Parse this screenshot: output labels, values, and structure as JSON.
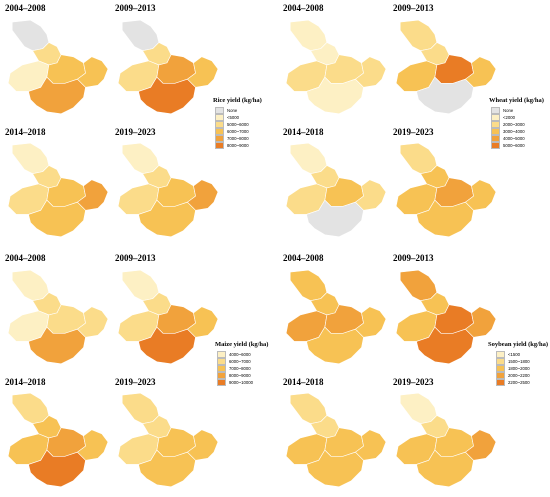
{
  "periods": [
    "2004–2008",
    "2009–2013",
    "2014–2018",
    "2019–2023"
  ],
  "crops": [
    {
      "id": "rice",
      "legend_title": "Rice yield (kg/ha)",
      "legend_items": [
        {
          "label": "None",
          "color": "#e3e3e3"
        },
        {
          "label": "<5000",
          "color": "#fdf0c4"
        },
        {
          "label": "5000~6000",
          "color": "#fbdc8a"
        },
        {
          "label": "6000~7000",
          "color": "#f7c254"
        },
        {
          "label": "7000~8000",
          "color": "#f1a23c"
        },
        {
          "label": "8000~9000",
          "color": "#e97c25"
        }
      ],
      "maps": [
        {
          "period": "2004–2008",
          "north": "#e3e3e3",
          "west": "#fdf0c4",
          "central": "#f7c254",
          "south": "#f1a23c",
          "east": "#f7c254",
          "panhandle": "#fbdc8a"
        },
        {
          "period": "2009–2013",
          "north": "#e3e3e3",
          "west": "#fbdc8a",
          "central": "#f1a23c",
          "south": "#e97c25",
          "east": "#f7c254",
          "panhandle": "#fbdc8a"
        },
        {
          "period": "2014–2018",
          "north": "#fdf0c4",
          "west": "#fbdc8a",
          "central": "#f7c254",
          "south": "#f7c254",
          "east": "#f1a23c",
          "panhandle": "#fbdc8a"
        },
        {
          "period": "2019–2023",
          "north": "#fdf0c4",
          "west": "#fbdc8a",
          "central": "#f7c254",
          "south": "#f7c254",
          "east": "#f1a23c",
          "panhandle": "#fbdc8a"
        }
      ]
    },
    {
      "id": "wheat",
      "legend_title": "Wheat yield (kg/ha)",
      "legend_items": [
        {
          "label": "None",
          "color": "#e3e3e3"
        },
        {
          "label": "<2000",
          "color": "#fdf0c4"
        },
        {
          "label": "2000~3000",
          "color": "#fbdc8a"
        },
        {
          "label": "3000~4000",
          "color": "#f7c254"
        },
        {
          "label": "4000~5000",
          "color": "#f1a23c"
        },
        {
          "label": "5000~6000",
          "color": "#e97c25"
        }
      ],
      "maps": [
        {
          "period": "2004–2008",
          "north": "#fdf0c4",
          "west": "#fbdc8a",
          "central": "#fbdc8a",
          "south": "#fdf0c4",
          "east": "#fbdc8a",
          "panhandle": "#fdf0c4"
        },
        {
          "period": "2009–2013",
          "north": "#fbdc8a",
          "west": "#f7c254",
          "central": "#e97c25",
          "south": "#e3e3e3",
          "east": "#f7c254",
          "panhandle": "#fbdc8a"
        },
        {
          "period": "2014–2018",
          "north": "#fdf0c4",
          "west": "#fbdc8a",
          "central": "#f7c254",
          "south": "#e3e3e3",
          "east": "#fbdc8a",
          "panhandle": "#fbdc8a"
        },
        {
          "period": "2019–2023",
          "north": "#fbdc8a",
          "west": "#f7c254",
          "central": "#f1a23c",
          "south": "#f7c254",
          "east": "#f7c254",
          "panhandle": "#f7c254"
        }
      ]
    },
    {
      "id": "maize",
      "legend_title": "Maize yield (kg/ha)",
      "legend_items": [
        {
          "label": "4000~6000",
          "color": "#fdf0c4"
        },
        {
          "label": "6000~7000",
          "color": "#fbdc8a"
        },
        {
          "label": "7000~8000",
          "color": "#f7c254"
        },
        {
          "label": "8000~9000",
          "color": "#f1a23c"
        },
        {
          "label": "9000~10000",
          "color": "#e97c25"
        }
      ],
      "maps": [
        {
          "period": "2004–2008",
          "north": "#fdf0c4",
          "west": "#fdf0c4",
          "central": "#fbdc8a",
          "south": "#f1a23c",
          "east": "#fbdc8a",
          "panhandle": "#fbdc8a"
        },
        {
          "period": "2009–2013",
          "north": "#fdf0c4",
          "west": "#fbdc8a",
          "central": "#f1a23c",
          "south": "#e97c25",
          "east": "#f7c254",
          "panhandle": "#fbdc8a"
        },
        {
          "period": "2014–2018",
          "north": "#fbdc8a",
          "west": "#f7c254",
          "central": "#f1a23c",
          "south": "#e97c25",
          "east": "#f7c254",
          "panhandle": "#f7c254"
        },
        {
          "period": "2019–2023",
          "north": "#fbdc8a",
          "west": "#fbdc8a",
          "central": "#f7c254",
          "south": "#f7c254",
          "east": "#f7c254",
          "panhandle": "#fbdc8a"
        }
      ]
    },
    {
      "id": "soybean",
      "legend_title": "Soybean yield (kg/ha)",
      "legend_items": [
        {
          "label": "<1500",
          "color": "#fdf0c4"
        },
        {
          "label": "1500~1800",
          "color": "#fbdc8a"
        },
        {
          "label": "1800~2000",
          "color": "#f7c254"
        },
        {
          "label": "2000~2200",
          "color": "#f1a23c"
        },
        {
          "label": "2200~2500",
          "color": "#e97c25"
        }
      ],
      "maps": [
        {
          "period": "2004–2008",
          "north": "#f7c254",
          "west": "#f1a23c",
          "central": "#f1a23c",
          "south": "#f7c254",
          "east": "#f7c254",
          "panhandle": "#f7c254"
        },
        {
          "period": "2009–2013",
          "north": "#f1a23c",
          "west": "#f7c254",
          "central": "#e97c25",
          "south": "#e97c25",
          "east": "#f1a23c",
          "panhandle": "#f7c254"
        },
        {
          "period": "2014–2018",
          "north": "#fbdc8a",
          "west": "#f7c254",
          "central": "#f7c254",
          "south": "#f7c254",
          "east": "#f7c254",
          "panhandle": "#fbdc8a"
        },
        {
          "period": "2019–2023",
          "north": "#fdf0c4",
          "west": "#f7c254",
          "central": "#f7c254",
          "south": "#f7c254",
          "east": "#f1a23c",
          "panhandle": "#fbdc8a"
        }
      ]
    }
  ]
}
